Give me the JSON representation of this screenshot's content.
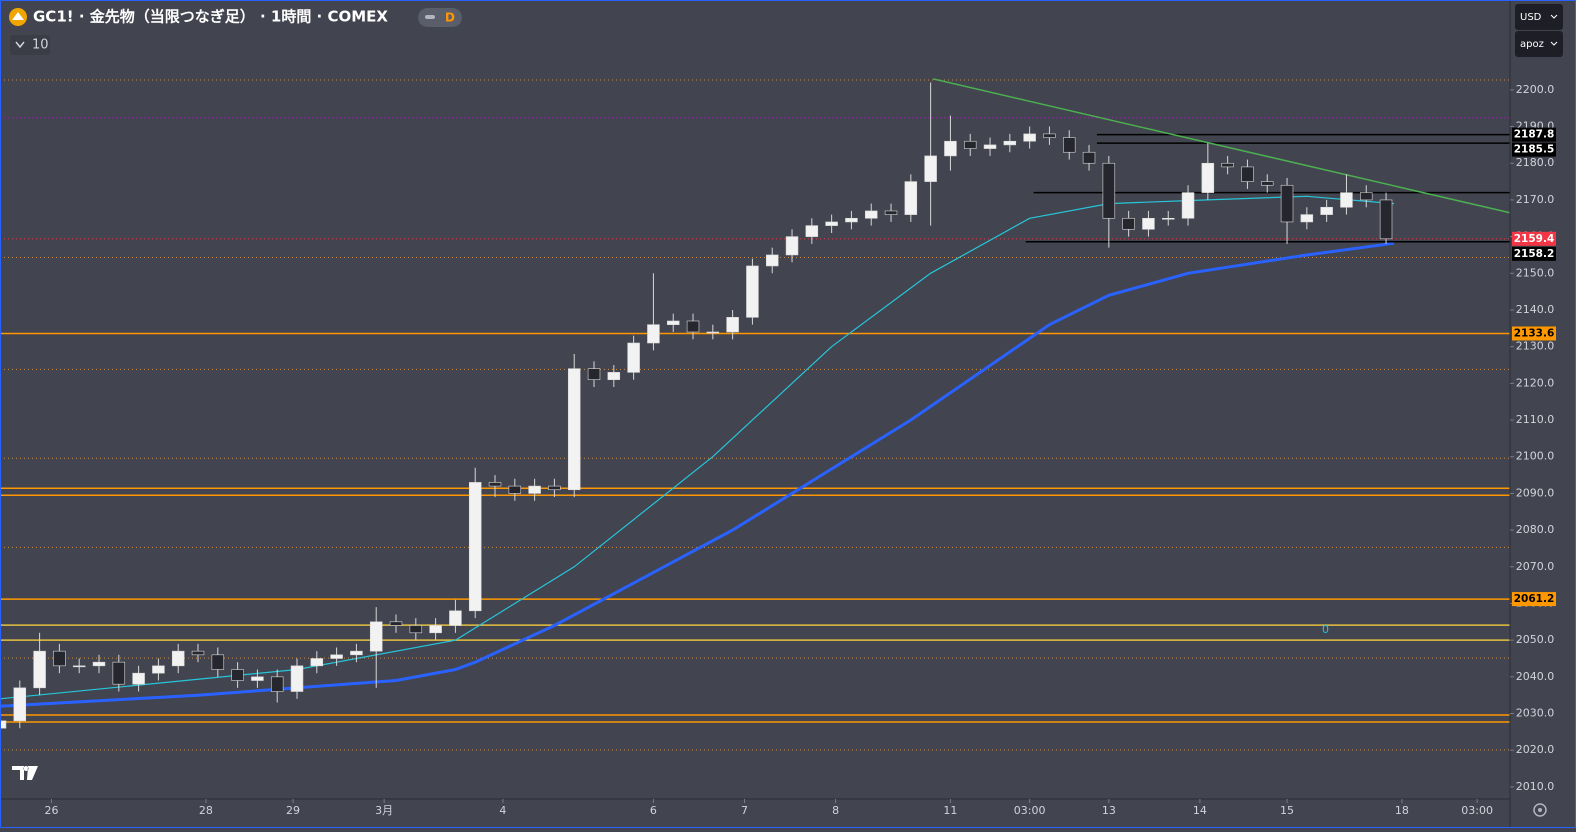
{
  "ui": {
    "currency": "USD",
    "user": "apoz",
    "interval_count": "10",
    "badge": "D"
  },
  "chart_data": {
    "type": "candlestick",
    "title": "GC1! · 金先物（当限つなぎ足） · 1時間 · COMEX",
    "annotation": "0",
    "up_color": "#f2f2f2",
    "down_color": "#26272e",
    "wick_color": "#d8d8d8",
    "xlim": [
      0,
      381.3
    ],
    "ylim": [
      2006.7,
      2224.5
    ],
    "xticks": [
      {
        "value": 13,
        "label": "26"
      },
      {
        "value": 52,
        "label": "28"
      },
      {
        "value": 74,
        "label": "29"
      },
      {
        "value": 97,
        "label": "3月"
      },
      {
        "value": 127,
        "label": "4"
      },
      {
        "value": 165,
        "label": "6"
      },
      {
        "value": 188,
        "label": "7"
      },
      {
        "value": 211,
        "label": "8"
      },
      {
        "value": 240,
        "label": "11"
      },
      {
        "value": 260,
        "label": "03:00"
      },
      {
        "value": 280,
        "label": "13"
      },
      {
        "value": 303,
        "label": "14"
      },
      {
        "value": 325,
        "label": "15"
      },
      {
        "value": 354,
        "label": "18"
      },
      {
        "value": 373,
        "label": "03:00"
      }
    ],
    "yticks": [
      {
        "value": 2010,
        "label": "2010.0"
      },
      {
        "value": 2020,
        "label": "2020.0"
      },
      {
        "value": 2030,
        "label": "2030.0"
      },
      {
        "value": 2040,
        "label": "2040.0"
      },
      {
        "value": 2050,
        "label": "2050.0"
      },
      {
        "value": 2060,
        "label": "2060.0"
      },
      {
        "value": 2070,
        "label": "2070.0"
      },
      {
        "value": 2080,
        "label": "2080.0"
      },
      {
        "value": 2090,
        "label": "2090.0"
      },
      {
        "value": 2100,
        "label": "2100.0"
      },
      {
        "value": 2110,
        "label": "2110.0"
      },
      {
        "value": 2120,
        "label": "2120.0"
      },
      {
        "value": 2130,
        "label": "2130.0"
      },
      {
        "value": 2140,
        "label": "2140.0"
      },
      {
        "value": 2150,
        "label": "2150.0"
      },
      {
        "value": 2160,
        "label": "2160.0"
      },
      {
        "value": 2170,
        "label": "2170.0"
      },
      {
        "value": 2180,
        "label": "2180.0"
      },
      {
        "value": 2190,
        "label": "2190.0"
      },
      {
        "value": 2200,
        "label": "2200.0"
      }
    ],
    "x": [
      0,
      5,
      10,
      15,
      20,
      25,
      30,
      35,
      40,
      45,
      50,
      55,
      60,
      65,
      70,
      75,
      80,
      85,
      90,
      95,
      100,
      105,
      110,
      115,
      120,
      125,
      130,
      135,
      140,
      145,
      150,
      155,
      160,
      165,
      170,
      175,
      180,
      185,
      190,
      195,
      200,
      205,
      210,
      215,
      220,
      225,
      230,
      235,
      240,
      245,
      250,
      255,
      260,
      265,
      270,
      275,
      280,
      285,
      290,
      295,
      300,
      305,
      310,
      315,
      320,
      325,
      330,
      335,
      340,
      345,
      350
    ],
    "open": [
      2026,
      2028,
      2037,
      2047,
      2043,
      2043,
      2044,
      2038,
      2041,
      2043,
      2047,
      2046,
      2042,
      2039,
      2040,
      2036,
      2043,
      2045,
      2046,
      2047,
      2055,
      2054,
      2052,
      2054,
      2058,
      2093,
      2092,
      2090,
      2092,
      2091,
      2124,
      2121,
      2123,
      2131,
      2136,
      2137,
      2134,
      2134,
      2138,
      2152,
      2155,
      2160,
      2163,
      2164,
      2165,
      2167,
      2166,
      2175,
      2182,
      2186,
      2184,
      2185,
      2186,
      2188,
      2187,
      2183,
      2180,
      2165,
      2162,
      2165,
      2165,
      2172,
      2180,
      2179,
      2175,
      2174,
      2164,
      2166,
      2168,
      2172,
      2170
    ],
    "high": [
      2030,
      2039,
      2052,
      2049,
      2045,
      2046,
      2046,
      2043,
      2045,
      2049,
      2049,
      2048,
      2044,
      2042,
      2042,
      2045,
      2047,
      2048,
      2049,
      2059,
      2057,
      2056,
      2056,
      2061,
      2097,
      2095,
      2094,
      2094,
      2094,
      2128,
      2126,
      2125,
      2133,
      2150,
      2139,
      2139,
      2136,
      2140,
      2154,
      2157,
      2162,
      2165,
      2166,
      2167,
      2169,
      2169,
      2177,
      2202,
      2193,
      2188,
      2187,
      2188,
      2190,
      2190,
      2189,
      2185,
      2182,
      2167,
      2167,
      2167,
      2174,
      2185.5,
      2182,
      2181,
      2177,
      2176,
      2168,
      2170,
      2177,
      2174,
      2172
    ],
    "low": [
      2024,
      2026,
      2035,
      2041,
      2041,
      2041,
      2036,
      2036,
      2039,
      2041,
      2044,
      2040,
      2037,
      2037,
      2033,
      2034,
      2041,
      2043,
      2044,
      2037,
      2052,
      2050,
      2050,
      2052,
      2056,
      2089,
      2088,
      2088,
      2089,
      2089,
      2119,
      2119,
      2121,
      2129,
      2134,
      2132,
      2132,
      2132,
      2136,
      2150,
      2153,
      2158,
      2161,
      2162,
      2163,
      2164,
      2164,
      2163,
      2178,
      2182,
      2182,
      2183,
      2184,
      2185,
      2181,
      2178,
      2157,
      2160,
      2160,
      2163,
      2163,
      2170,
      2177,
      2173,
      2172,
      2158,
      2162,
      2164,
      2166,
      2168,
      2158
    ],
    "close": [
      2028,
      2037,
      2047,
      2043,
      2043,
      2044,
      2038,
      2041,
      2043,
      2047,
      2046,
      2042,
      2039,
      2040,
      2036,
      2043,
      2045,
      2046,
      2047,
      2055,
      2054,
      2052,
      2054,
      2058,
      2093,
      2092,
      2090,
      2092,
      2091,
      2124,
      2121,
      2123,
      2131,
      2136,
      2137,
      2134,
      2134,
      2138,
      2152,
      2155,
      2160,
      2163,
      2164,
      2165,
      2167,
      2166,
      2175,
      2182,
      2186,
      2184,
      2185,
      2186,
      2188,
      2187,
      2183,
      2180,
      2165,
      2162,
      2165,
      2165,
      2172,
      2180,
      2179,
      2175,
      2174,
      2164,
      2166,
      2168,
      2172,
      2170,
      2159.4
    ],
    "lines": [
      {
        "color": "#2962ff",
        "width": 3,
        "x": [
          0,
          50,
          100,
          115,
          120,
          140,
          185,
          230,
          265,
          280,
          300,
          330,
          352
        ],
        "values": [
          2032,
          2035,
          2039,
          2042,
          2044,
          2054,
          2080,
          2110,
          2136,
          2144,
          2150,
          2155,
          2158.2
        ]
      },
      {
        "color": "#26c6da",
        "width": 1.2,
        "x": [
          0,
          75,
          115,
          145,
          180,
          210,
          235,
          260,
          280,
          305,
          330,
          352
        ],
        "values": [
          2034,
          2042,
          2050,
          2070,
          2100,
          2130,
          2150,
          2165,
          2169,
          2170,
          2171,
          2169
        ]
      }
    ],
    "levels": [
      {
        "value": 2202.7,
        "color": "#d08a3a",
        "style": "dotted"
      },
      {
        "value": 2192.4,
        "color": "#9c27b0",
        "style": "dotted"
      },
      {
        "value": 2159.4,
        "color": "#f23645",
        "style": "dotted"
      },
      {
        "value": 2154.3,
        "color": "#d08a3a",
        "style": "dotted"
      },
      {
        "value": 2133.6,
        "color": "#ff9800",
        "style": "solid"
      },
      {
        "value": 2123.8,
        "color": "#d08a3a",
        "style": "dotted"
      },
      {
        "value": 2099.6,
        "color": "#d08a3a",
        "style": "dotted"
      },
      {
        "value": 2091.4,
        "color": "#ff9800",
        "style": "solid"
      },
      {
        "value": 2089.5,
        "color": "#ff9800",
        "style": "solid"
      },
      {
        "value": 2075.3,
        "color": "#d08a3a",
        "style": "dotted"
      },
      {
        "value": 2061.2,
        "color": "#ff9800",
        "style": "solid"
      },
      {
        "value": 2054.1,
        "color": "#e6c040",
        "style": "solid"
      },
      {
        "value": 2050,
        "color": "#e6c040",
        "style": "solid"
      },
      {
        "value": 2045.1,
        "color": "#d08a3a",
        "style": "dotted"
      },
      {
        "value": 2029.6,
        "color": "#ff9800",
        "style": "solid"
      },
      {
        "value": 2027.7,
        "color": "#ff9800",
        "style": "solid"
      },
      {
        "value": 2020.1,
        "color": "#d08a3a",
        "style": "dotted"
      }
    ],
    "segments": [
      {
        "color": "#000000",
        "x": [
          277,
          381.3
        ],
        "values": [
          2187.8,
          2187.8
        ]
      },
      {
        "color": "#000000",
        "x": [
          277,
          381.3
        ],
        "values": [
          2185.5,
          2185.5
        ]
      },
      {
        "color": "#000000",
        "x": [
          261,
          381.3
        ],
        "values": [
          2172,
          2172
        ]
      },
      {
        "color": "#000000",
        "x": [
          259,
          381.3
        ],
        "values": [
          2158.6,
          2158.6
        ]
      },
      {
        "color": "#4caf50",
        "x": [
          235.6,
          381.3
        ],
        "values": [
          2203,
          2166.5
        ]
      }
    ],
    "price_labels": [
      {
        "value": 2187.8,
        "bg": "#000000",
        "fg": "#ffffff"
      },
      {
        "value": 2185.5,
        "bg": "#000000",
        "fg": "#ffffff"
      },
      {
        "value": 2159.4,
        "bg": "#f23645",
        "fg": "#ffffff"
      },
      {
        "value": 2158.2,
        "bg": "#000000",
        "fg": "#ffffff"
      },
      {
        "value": 2133.6,
        "bg": "#ff9800",
        "fg": "#000000"
      },
      {
        "value": 2061.2,
        "bg": "#ff9800",
        "fg": "#000000"
      }
    ]
  }
}
